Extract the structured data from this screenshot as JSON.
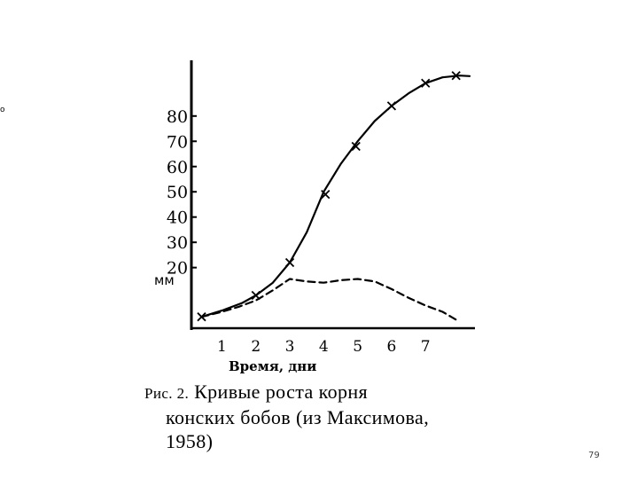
{
  "chart_data": {
    "type": "line",
    "xlabel": "Время, дни",
    "ylabel": "мм",
    "x_ticks": [
      1,
      2,
      3,
      4,
      5,
      6,
      7
    ],
    "y_ticks": [
      20,
      30,
      40,
      50,
      60,
      70,
      80
    ],
    "xlim": [
      0.1,
      8.3
    ],
    "ylim": [
      -4,
      101
    ],
    "grid": false,
    "series": [
      {
        "style": "solid",
        "markers": "x",
        "points": [
          {
            "x": 0.4,
            "y": 0.5
          },
          {
            "x": 1.0,
            "y": 3
          },
          {
            "x": 1.6,
            "y": 6
          },
          {
            "x": 2.0,
            "y": 9
          },
          {
            "x": 2.5,
            "y": 14
          },
          {
            "x": 3.0,
            "y": 22
          },
          {
            "x": 3.5,
            "y": 34
          },
          {
            "x": 4.0,
            "y": 50
          },
          {
            "x": 4.5,
            "y": 61
          },
          {
            "x": 5.0,
            "y": 70
          },
          {
            "x": 5.5,
            "y": 78
          },
          {
            "x": 6.0,
            "y": 84
          },
          {
            "x": 6.5,
            "y": 89
          },
          {
            "x": 7.0,
            "y": 93
          },
          {
            "x": 7.5,
            "y": 95.3
          },
          {
            "x": 8.0,
            "y": 96
          },
          {
            "x": 8.3,
            "y": 95.8
          }
        ],
        "marker_points": [
          {
            "x": 0.4,
            "y": 0.5
          },
          {
            "x": 2.0,
            "y": 9
          },
          {
            "x": 3.0,
            "y": 22
          },
          {
            "x": 4.05,
            "y": 49
          },
          {
            "x": 4.95,
            "y": 68
          },
          {
            "x": 6.0,
            "y": 84
          },
          {
            "x": 7.0,
            "y": 93
          },
          {
            "x": 7.9,
            "y": 96
          }
        ]
      },
      {
        "style": "dashed",
        "markers": "none",
        "points": [
          {
            "x": 0.4,
            "y": 0.5
          },
          {
            "x": 1.0,
            "y": 2.5
          },
          {
            "x": 1.5,
            "y": 4.5
          },
          {
            "x": 2.0,
            "y": 7
          },
          {
            "x": 2.5,
            "y": 11
          },
          {
            "x": 3.0,
            "y": 15.5
          },
          {
            "x": 3.5,
            "y": 14.5
          },
          {
            "x": 4.0,
            "y": 14
          },
          {
            "x": 4.5,
            "y": 15
          },
          {
            "x": 5.0,
            "y": 15.5
          },
          {
            "x": 5.5,
            "y": 14.5
          },
          {
            "x": 6.0,
            "y": 11.5
          },
          {
            "x": 6.5,
            "y": 8
          },
          {
            "x": 7.0,
            "y": 5
          },
          {
            "x": 7.5,
            "y": 2.5
          },
          {
            "x": 7.95,
            "y": -1
          }
        ]
      }
    ]
  },
  "y_unit": "мм",
  "edge_mark": "o",
  "caption": {
    "prefix": "Рис. 2.",
    "line1": "Кривые роста корня",
    "line2": "конских бобов (из Максимова,",
    "line3": "1958)"
  },
  "page_number": "79"
}
